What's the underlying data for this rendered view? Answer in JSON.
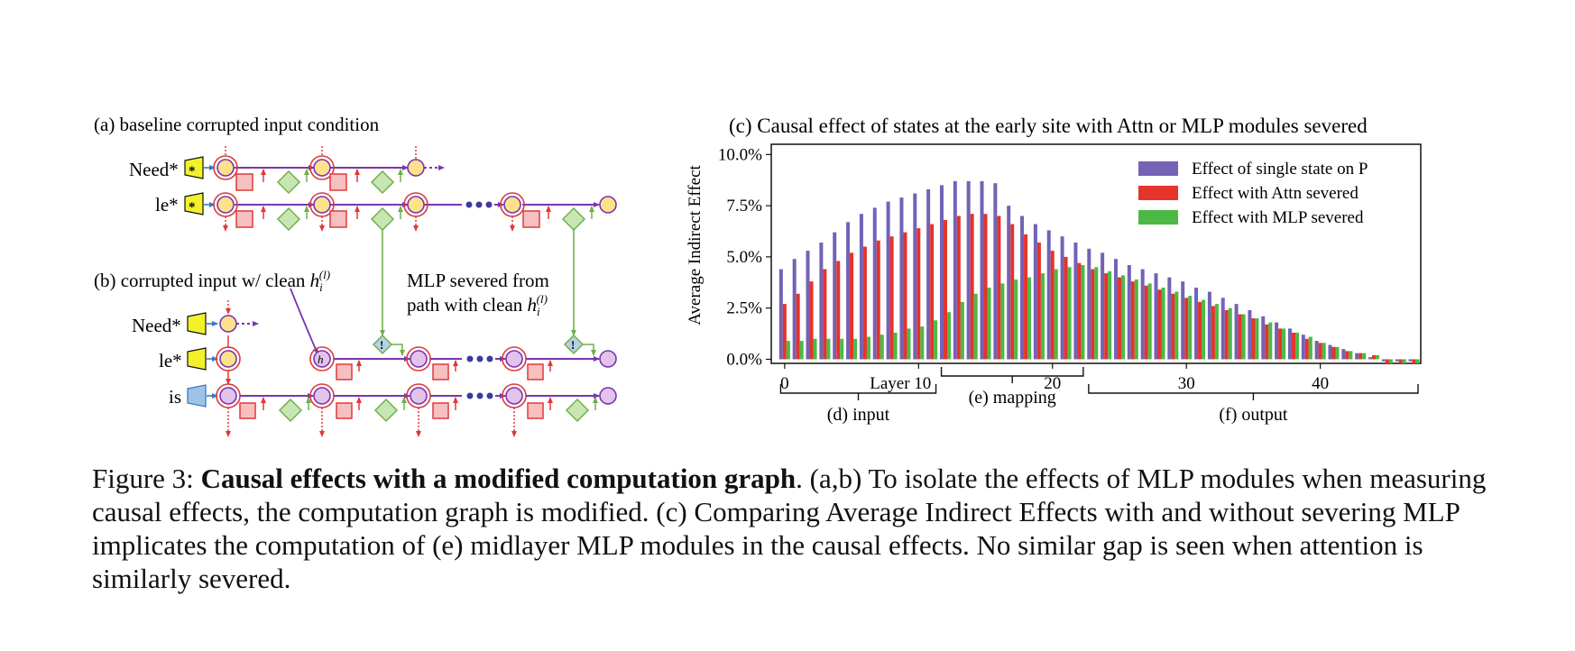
{
  "panel_a": {
    "title": "(a) baseline corrupted input condition",
    "token_need": "Need*",
    "token_le": "le*",
    "token_mark": "*"
  },
  "panel_b": {
    "title_prefix": "(b) corrupted input w/ clean ",
    "h_sym": "h",
    "h_sub": "i",
    "h_sup": "(l)",
    "token_need": "Need*",
    "token_le": "le*",
    "token_is": "is",
    "node_h_label": "h",
    "mlp_note_line1": "MLP severed from",
    "mlp_note_line2_prefix": "path with clean ",
    "exclaim": "!"
  },
  "colors": {
    "attn_red": "#e0383a",
    "mlp_green": "#6fb04a",
    "purple": "#7a35b0",
    "node_yellow": "#fde28c",
    "node_purple": "#e3c3ec",
    "token_yellow": "#f3f12a",
    "input_blue": "#9fc3e6",
    "bar_blue": "#7462b6",
    "bar_red": "#e4342b",
    "bar_green": "#4cb944"
  },
  "chart_data": {
    "type": "bar",
    "title": "(c) Causal effect of states at the early site with Attn or MLP modules severed",
    "ylabel": "Average Indirect Effect",
    "ylim": [
      -0.002,
      0.105
    ],
    "y_ticks": [
      0,
      0.025,
      0.05,
      0.075,
      0.1
    ],
    "y_tick_labels": [
      "0.0%",
      "2.5%",
      "5.0%",
      "7.5%",
      "10.0%"
    ],
    "xlim": [
      -1,
      47.5
    ],
    "x_ticks": [
      0,
      10,
      20,
      30,
      40
    ],
    "x_tick_labels": [
      "0",
      "Layer 10",
      "20",
      "30",
      "40"
    ],
    "legend_position": "top-right",
    "grid": false,
    "x": [
      0,
      1,
      2,
      3,
      4,
      5,
      6,
      7,
      8,
      9,
      10,
      11,
      12,
      13,
      14,
      15,
      16,
      17,
      18,
      19,
      20,
      21,
      22,
      23,
      24,
      25,
      26,
      27,
      28,
      29,
      30,
      31,
      32,
      33,
      34,
      35,
      36,
      37,
      38,
      39,
      40,
      41,
      42,
      43,
      44,
      45,
      46,
      47
    ],
    "series": [
      {
        "name": "Effect of single state on P",
        "color": "#7462b6",
        "values": [
          0.044,
          0.049,
          0.053,
          0.057,
          0.062,
          0.067,
          0.071,
          0.074,
          0.077,
          0.079,
          0.081,
          0.083,
          0.085,
          0.087,
          0.087,
          0.087,
          0.086,
          0.075,
          0.07,
          0.066,
          0.063,
          0.06,
          0.057,
          0.054,
          0.052,
          0.049,
          0.046,
          0.044,
          0.042,
          0.04,
          0.038,
          0.035,
          0.033,
          0.03,
          0.027,
          0.024,
          0.021,
          0.018,
          0.015,
          0.012,
          0.009,
          0.007,
          0.005,
          0.003,
          0.001,
          -0.001,
          -0.001,
          -0.001
        ]
      },
      {
        "name": "Effect with Attn severed",
        "color": "#e4342b",
        "values": [
          0.027,
          0.032,
          0.038,
          0.044,
          0.048,
          0.052,
          0.055,
          0.058,
          0.06,
          0.062,
          0.064,
          0.066,
          0.068,
          0.07,
          0.071,
          0.071,
          0.07,
          0.066,
          0.061,
          0.057,
          0.053,
          0.05,
          0.047,
          0.044,
          0.042,
          0.04,
          0.038,
          0.036,
          0.034,
          0.032,
          0.03,
          0.028,
          0.026,
          0.024,
          0.022,
          0.02,
          0.017,
          0.015,
          0.013,
          0.01,
          0.008,
          0.006,
          0.004,
          0.003,
          0.002,
          -0.002,
          -0.002,
          -0.002
        ]
      },
      {
        "name": "Effect with MLP severed",
        "color": "#4cb944",
        "values": [
          0.009,
          0.009,
          0.01,
          0.01,
          0.01,
          0.01,
          0.011,
          0.012,
          0.013,
          0.015,
          0.016,
          0.019,
          0.023,
          0.028,
          0.032,
          0.035,
          0.037,
          0.039,
          0.04,
          0.042,
          0.044,
          0.045,
          0.046,
          0.045,
          0.043,
          0.041,
          0.039,
          0.037,
          0.035,
          0.033,
          0.031,
          0.029,
          0.027,
          0.025,
          0.022,
          0.02,
          0.018,
          0.015,
          0.013,
          0.011,
          0.008,
          0.006,
          0.004,
          0.003,
          0.002,
          -0.002,
          -0.002,
          -0.002
        ]
      }
    ],
    "brackets": [
      {
        "label": "(d) input",
        "from": -0.5,
        "to": 11.5
      },
      {
        "label": "(e) mapping",
        "from": 11.5,
        "to": 22.5
      },
      {
        "label": "(f) output",
        "from": 22.5,
        "to": 47.5
      }
    ]
  },
  "caption": {
    "prefix": "Figure 3: ",
    "bold": "Causal effects with a modified computation graph",
    "rest": ". (a,b) To isolate the effects of MLP modules when measuring causal effects, the computation graph is modified. (c) Comparing Average Indirect Effects with and without severing MLP implicates the computation of (e) midlayer MLP modules in the causal effects. No similar gap is seen when attention is similarly severed."
  }
}
